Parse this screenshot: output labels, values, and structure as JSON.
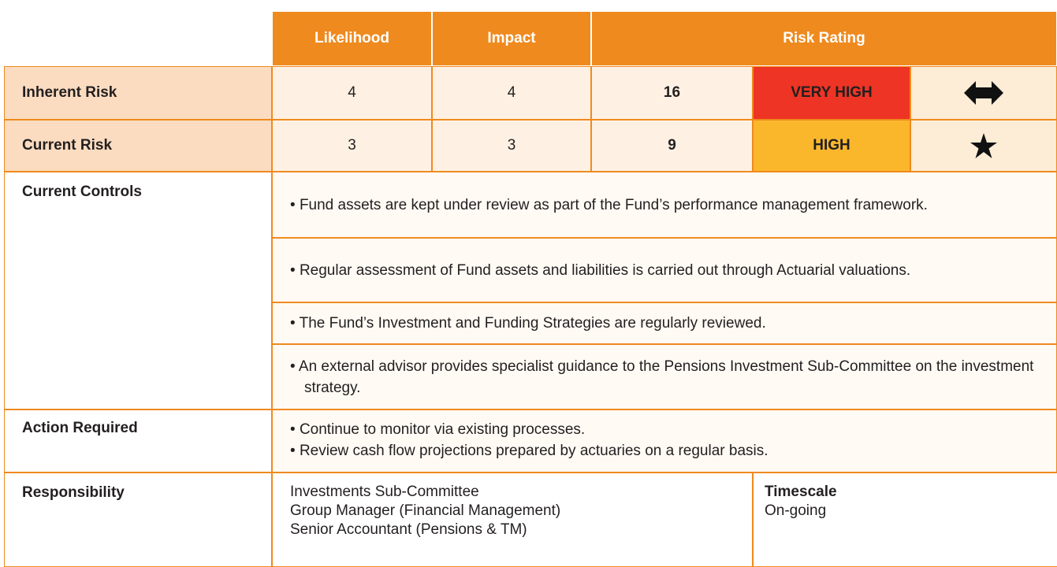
{
  "header": {
    "columns": [
      "Likelihood",
      "Impact",
      "Risk Rating"
    ]
  },
  "risk_rows": [
    {
      "label": "Inherent Risk",
      "likelihood": "4",
      "impact": "4",
      "score": "16",
      "rating": "VERY HIGH"
    },
    {
      "label": "Current Risk",
      "likelihood": "3",
      "impact": "3",
      "score": "9",
      "rating": "HIGH"
    }
  ],
  "current_controls": {
    "label": "Current Controls",
    "items": [
      "Fund assets are kept under review as part of the Fund’s performance management framework.",
      "Regular assessment of Fund assets and liabilities is carried out through Actuarial valuations.",
      "The Fund’s Investment and Funding Strategies are regularly reviewed.",
      "An external advisor provides specialist guidance to the Pensions Investment Sub-Committee on the investment strategy."
    ]
  },
  "action_required": {
    "label": "Action Required",
    "items": [
      "Continue to monitor via existing processes.",
      "Review cash flow projections prepared by actuaries on a regular basis."
    ]
  },
  "responsibility": {
    "label": "Responsibility",
    "lines": [
      "Investments Sub-Committee",
      "Group Manager (Financial Management)",
      "Senior Accountant (Pensions & TM)"
    ],
    "timescale_label": "Timescale",
    "timescale": "On-going"
  }
}
